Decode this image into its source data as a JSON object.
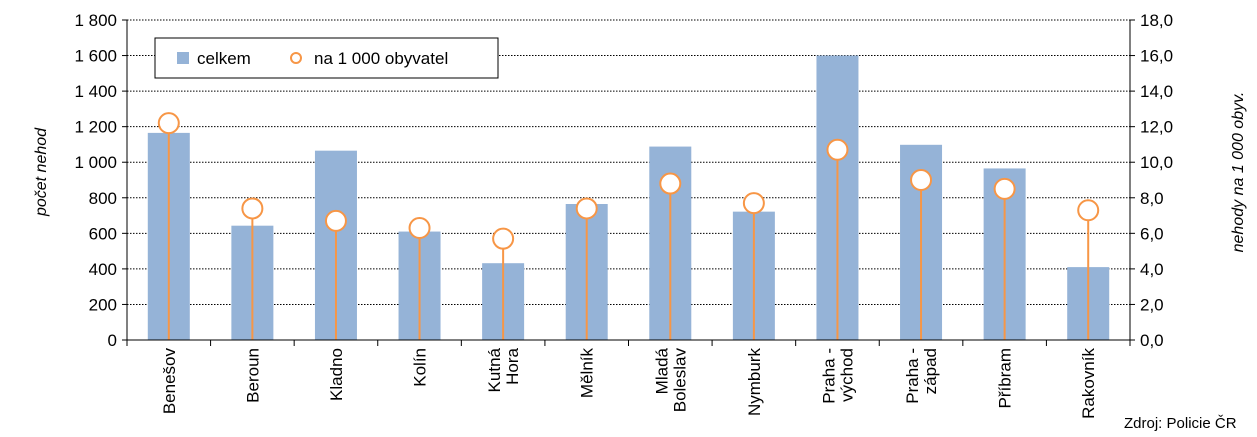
{
  "chart_data": {
    "type": "bar",
    "categories": [
      [
        "Benešov"
      ],
      [
        "Beroun"
      ],
      [
        "Kladno"
      ],
      [
        "Kolín"
      ],
      [
        "Kutná",
        "Hora"
      ],
      [
        "Mělník"
      ],
      [
        "Mladá",
        "Boleslav"
      ],
      [
        "Nymburk"
      ],
      [
        "Praha -",
        "východ"
      ],
      [
        "Praha -",
        "západ"
      ],
      [
        "Příbram"
      ],
      [
        "Rakovník"
      ]
    ],
    "series": [
      {
        "name": "celkem",
        "kind": "bar",
        "axis": "left",
        "color": "#95b3d7",
        "values": [
          1165,
          643,
          1065,
          610,
          432,
          765,
          1088,
          722,
          1600,
          1098,
          965,
          410
        ]
      },
      {
        "name": "na 1 000 obyvatel",
        "kind": "lollipop",
        "axis": "right",
        "color": "#f79646",
        "values": [
          12.2,
          7.4,
          6.7,
          6.3,
          5.7,
          7.4,
          8.8,
          7.7,
          10.7,
          9.0,
          8.5,
          7.3
        ]
      }
    ],
    "ylabel": "počet nehod",
    "y2label": "nehody na 1 000 obyv.",
    "ylim": [
      0,
      1800
    ],
    "y2lim": [
      0,
      18
    ],
    "yticks": [
      "0",
      "200",
      "400",
      "600",
      "800",
      "1 000",
      "1 200",
      "1 400",
      "1 600",
      "1 800"
    ],
    "y2ticks": [
      "0,0",
      "2,0",
      "4,0",
      "6,0",
      "8,0",
      "10,0",
      "12,0",
      "14,0",
      "16,0",
      "18,0"
    ],
    "grid": true,
    "legend_position": "top-left",
    "source": "Zdroj: Policie ČR"
  }
}
